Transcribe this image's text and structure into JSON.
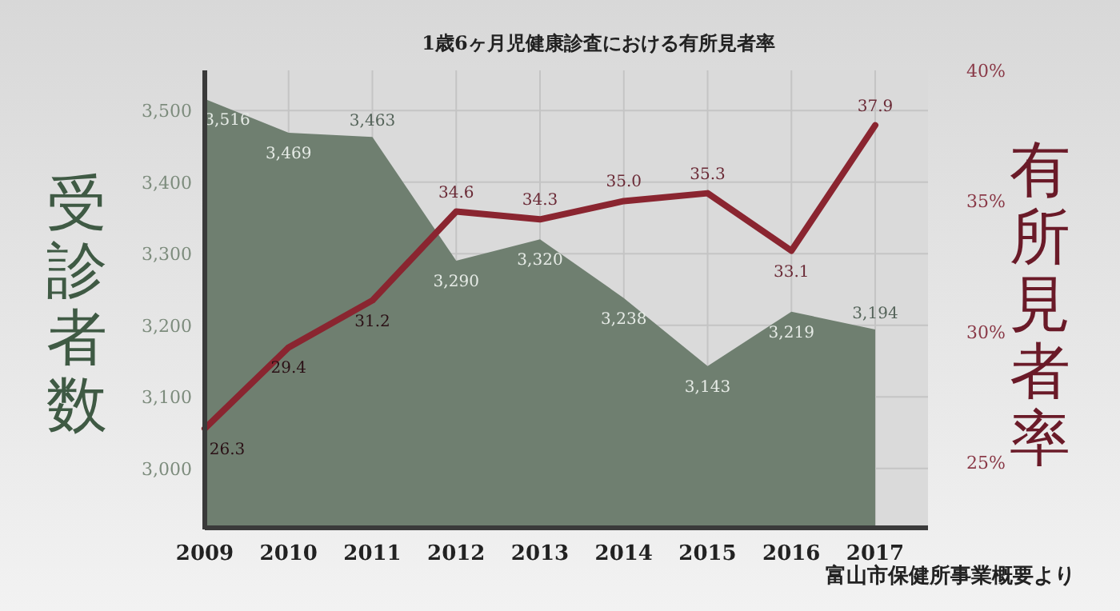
{
  "chart_data": {
    "type": "area",
    "title": "1歳6ヶ月児健康診査における有所見者率",
    "ylabel": "受診者数",
    "y2label": "有所見者率",
    "categories": [
      "2009",
      "2010",
      "2011",
      "2012",
      "2013",
      "2014",
      "2015",
      "2016",
      "2017"
    ],
    "series": [
      {
        "color": "#6f7f70",
        "values": [
          3516,
          3469,
          3463,
          3290,
          3320,
          3238,
          3143,
          3219,
          3194
        ],
        "value_labels": [
          "3,516",
          "3,469",
          "3,463",
          "3,290",
          "3,320",
          "3,238",
          "3,143",
          "3,219",
          "3,194"
        ]
      },
      {
        "type": "line",
        "axis": "y2",
        "color": "#8a2530",
        "values": [
          26.3,
          29.4,
          31.2,
          34.6,
          34.3,
          35.0,
          35.3,
          33.1,
          37.9
        ],
        "value_labels": [
          "26.3",
          "29.4",
          "31.2",
          "34.6",
          "34.3",
          "35.0",
          "35.3",
          "33.1",
          "37.9"
        ]
      }
    ],
    "ylim": [
      2917,
      3556
    ],
    "yticks": [
      {
        "value": 3000,
        "label": "3,000"
      },
      {
        "value": 3100,
        "label": "3,100"
      },
      {
        "value": 3200,
        "label": "3,200"
      },
      {
        "value": 3300,
        "label": "3,300"
      },
      {
        "value": 3400,
        "label": "3,400"
      },
      {
        "value": 3500,
        "label": "3,500"
      }
    ],
    "y2lim": [
      22.5,
      40
    ],
    "y2ticks": [
      {
        "value": 25,
        "label": "25%"
      },
      {
        "value": 30,
        "label": "30%"
      },
      {
        "value": 35,
        "label": "35%"
      },
      {
        "value": 40,
        "label": "40%"
      }
    ],
    "grid": true,
    "legend": false,
    "marker": "none",
    "line_style": "solid",
    "annotations": [
      "富山市保健所事業概要より"
    ]
  }
}
